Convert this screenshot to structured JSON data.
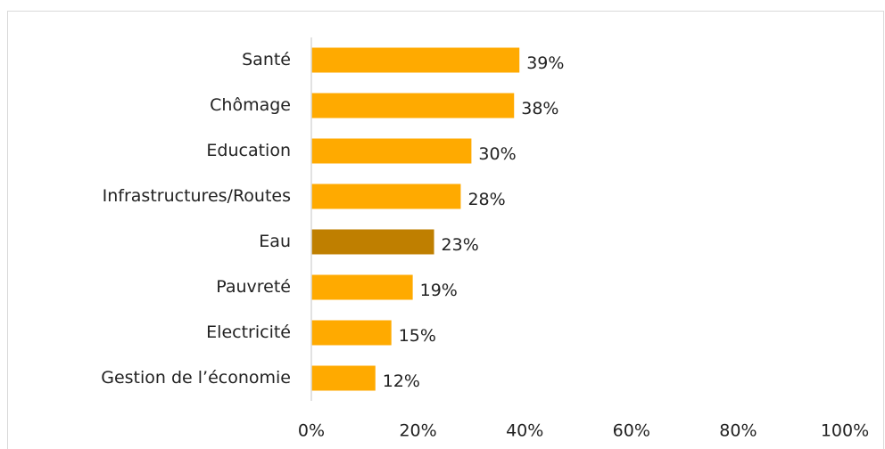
{
  "chart_data": {
    "type": "bar",
    "orientation": "horizontal",
    "categories": [
      "Santé",
      "Chômage",
      "Education",
      "Infrastructures/Routes",
      "Eau",
      "Pauvreté",
      "Electricité",
      "Gestion de l’économie"
    ],
    "values": [
      39,
      38,
      30,
      28,
      23,
      19,
      15,
      12
    ],
    "value_labels": [
      "39%",
      "38%",
      "30%",
      "28%",
      "23%",
      "19%",
      "15%",
      "12%"
    ],
    "colors": [
      "#FFAA00",
      "#FFAA00",
      "#FFAA00",
      "#FFAA00",
      "#BF7F00",
      "#FFAA00",
      "#FFAA00",
      "#FFAA00"
    ],
    "xlim": [
      0,
      100
    ],
    "xticks": [
      {
        "value": 0,
        "label": "0%"
      },
      {
        "value": 20,
        "label": "20%"
      },
      {
        "value": 40,
        "label": "40%"
      },
      {
        "value": 60,
        "label": "60%"
      },
      {
        "value": 80,
        "label": "80%"
      },
      {
        "value": 100,
        "label": "100%"
      }
    ],
    "grid": false
  }
}
